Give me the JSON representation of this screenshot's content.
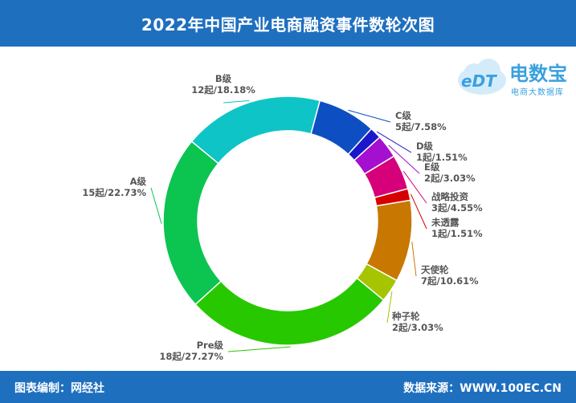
{
  "header": {
    "title": "2022年中国产业电商融资事件数轮次图"
  },
  "footer": {
    "left": "图表编制：网经社",
    "right": "数据来源：WWW.100EC.CN"
  },
  "logo": {
    "mark": "eDT",
    "brand": "电数宝",
    "tagline": "电商大数据库"
  },
  "chart_data": {
    "type": "pie",
    "style": "donut",
    "unit": "起",
    "slices": [
      {
        "name": "B级",
        "value": 12,
        "percent": "18.18%",
        "label": "12起/18.18%",
        "color": "#0fc4c6"
      },
      {
        "name": "C级",
        "value": 5,
        "percent": "7.58%",
        "label": "5起/7.58%",
        "color": "#0d4fc3"
      },
      {
        "name": "D级",
        "value": 1,
        "percent": "1.51%",
        "label": "1起/1.51%",
        "color": "#1a18c8"
      },
      {
        "name": "E级",
        "value": 2,
        "percent": "3.03%",
        "label": "2起/3.03%",
        "color": "#a40fd0"
      },
      {
        "name": "战略投资",
        "value": 3,
        "percent": "4.55%",
        "label": "3起/4.55%",
        "color": "#d6007a"
      },
      {
        "name": "未透露",
        "value": 1,
        "percent": "1.51%",
        "label": "1起/1.51%",
        "color": "#d60000"
      },
      {
        "name": "天使轮",
        "value": 7,
        "percent": "10.61%",
        "label": "7起/10.61%",
        "color": "#c87800"
      },
      {
        "name": "种子轮",
        "value": 2,
        "percent": "3.03%",
        "label": "2起/3.03%",
        "color": "#a6c400"
      },
      {
        "name": "Pre级",
        "value": 18,
        "percent": "27.27%",
        "label": "18起/27.27%",
        "color": "#28c800"
      },
      {
        "name": "A级",
        "value": 15,
        "percent": "22.73%",
        "label": "15起/22.73%",
        "color": "#0cc450"
      }
    ]
  }
}
